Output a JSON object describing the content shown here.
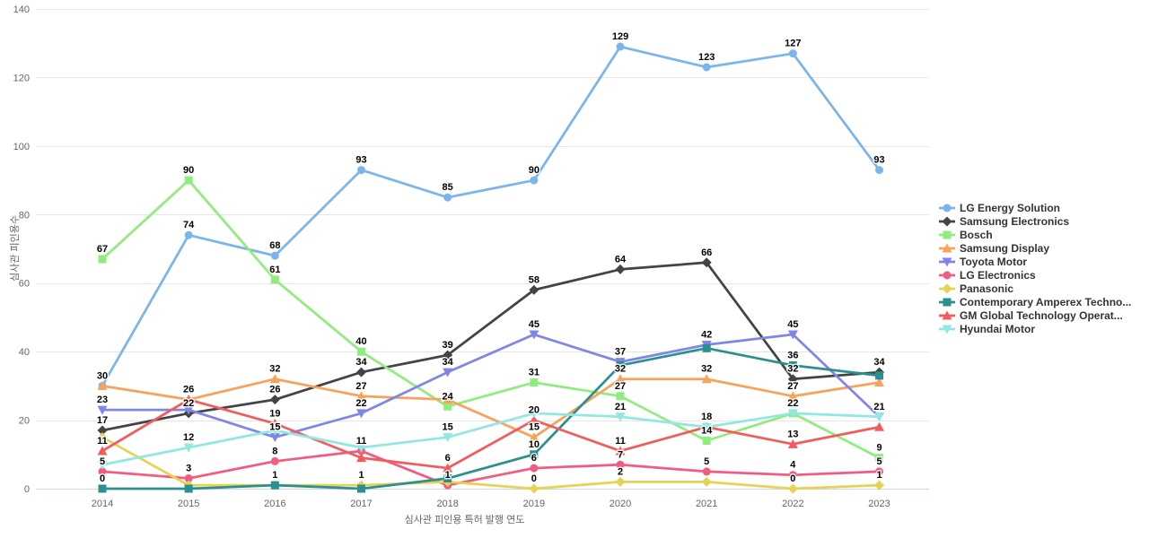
{
  "chart_data": {
    "type": "line",
    "title": "",
    "xlabel": "심사관 피인용 특허 발행 연도",
    "ylabel": "심사관 피인용수",
    "x": [
      2014,
      2015,
      2016,
      2017,
      2018,
      2019,
      2020,
      2021,
      2022,
      2023
    ],
    "ylim": [
      0,
      140
    ],
    "yticks": [
      0,
      20,
      40,
      60,
      80,
      100,
      120,
      140
    ],
    "grid": true,
    "legend_position": "right",
    "series": [
      {
        "name": "LG Energy Solution",
        "color": "#7cb5ec",
        "marker": "circle",
        "values": [
          30,
          74,
          68,
          93,
          85,
          90,
          129,
          123,
          127,
          93
        ],
        "label_visible": [
          1,
          1,
          1,
          1,
          1,
          1,
          1,
          1,
          1,
          1
        ]
      },
      {
        "name": "Samsung Electronics",
        "color": "#434348",
        "marker": "diamond",
        "values": [
          17,
          22,
          26,
          34,
          39,
          58,
          64,
          66,
          32,
          34
        ],
        "label_visible": [
          1,
          1,
          1,
          1,
          1,
          1,
          1,
          1,
          1,
          1
        ]
      },
      {
        "name": "Bosch",
        "color": "#90ed7d",
        "marker": "square",
        "values": [
          67,
          90,
          61,
          40,
          24,
          31,
          27,
          14,
          22,
          9
        ],
        "label_visible": [
          1,
          1,
          1,
          1,
          1,
          1,
          1,
          1,
          1,
          1
        ]
      },
      {
        "name": "Samsung Display",
        "color": "#f7a35c",
        "marker": "triangle",
        "values": [
          30,
          26,
          32,
          27,
          26,
          15,
          32,
          32,
          27,
          31
        ],
        "label_visible": [
          0,
          0,
          1,
          1,
          0,
          1,
          1,
          1,
          1,
          0
        ]
      },
      {
        "name": "Toyota Motor",
        "color": "#8085e9",
        "marker": "triangle-down",
        "values": [
          23,
          23,
          15,
          22,
          34,
          45,
          37,
          42,
          45,
          21
        ],
        "label_visible": [
          1,
          0,
          1,
          1,
          1,
          1,
          1,
          1,
          1,
          1
        ]
      },
      {
        "name": "LG Electronics",
        "color": "#f15c80",
        "marker": "circle",
        "values": [
          5,
          3,
          8,
          11,
          1,
          6,
          7,
          5,
          4,
          5
        ],
        "label_visible": [
          1,
          1,
          1,
          1,
          1,
          1,
          1,
          1,
          1,
          1
        ]
      },
      {
        "name": "Panasonic",
        "color": "#e4d354",
        "marker": "diamond",
        "values": [
          15,
          1,
          1,
          1,
          2,
          0,
          2,
          2,
          0,
          1
        ],
        "label_visible": [
          0,
          0,
          0,
          1,
          0,
          1,
          1,
          0,
          1,
          1
        ]
      },
      {
        "name": "Contemporary Amperex Techno...",
        "color": "#2b908f",
        "marker": "square",
        "values": [
          0,
          0,
          1,
          0,
          3,
          10,
          36,
          41,
          36,
          33
        ],
        "label_visible": [
          1,
          0,
          1,
          0,
          0,
          1,
          0,
          0,
          1,
          0
        ]
      },
      {
        "name": "GM Global Technology Operat...",
        "color": "#f45b5b",
        "marker": "triangle",
        "values": [
          11,
          26,
          19,
          9,
          6,
          20,
          11,
          18,
          13,
          18
        ],
        "label_visible": [
          1,
          1,
          1,
          0,
          1,
          1,
          1,
          1,
          1,
          0
        ]
      },
      {
        "name": "Hyundai Motor",
        "color": "#91e8e1",
        "marker": "triangle-down",
        "values": [
          7,
          12,
          17,
          12,
          15,
          22,
          21,
          18,
          22,
          21
        ],
        "label_visible": [
          0,
          1,
          0,
          0,
          1,
          0,
          1,
          0,
          0,
          0
        ]
      }
    ]
  }
}
